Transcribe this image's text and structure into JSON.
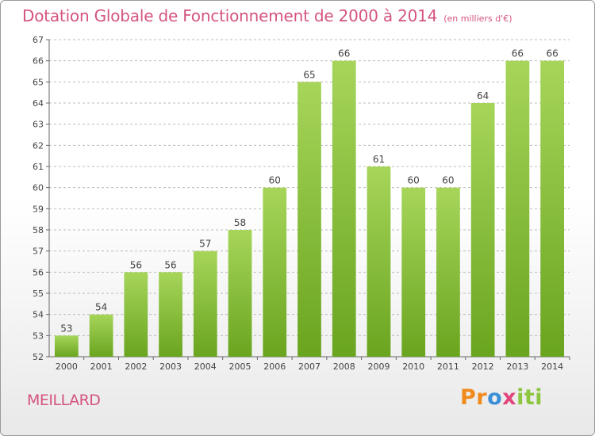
{
  "title": {
    "main": "Dotation Globale de Fonctionnement de 2000 à 2014",
    "unit": "(en milliers d'€)"
  },
  "commune": "MEILLARD",
  "logo": {
    "part1": "Pr",
    "part2": "o",
    "part3": "x",
    "part4": "iti"
  },
  "colors": {
    "title": "#d4547e",
    "bar_light": "#a6d55a",
    "bar_dark": "#6aa51f",
    "grid": "#bbbbbb"
  },
  "chart_data": {
    "type": "bar",
    "categories": [
      "2000",
      "2001",
      "2002",
      "2003",
      "2004",
      "2005",
      "2006",
      "2007",
      "2008",
      "2009",
      "2010",
      "2011",
      "2012",
      "2013",
      "2014"
    ],
    "values": [
      53,
      54,
      56,
      56,
      57,
      58,
      60,
      65,
      66,
      61,
      60,
      60,
      64,
      66,
      66
    ],
    "ylim": [
      52,
      67
    ],
    "yticks": [
      52,
      53,
      54,
      55,
      56,
      57,
      58,
      59,
      60,
      61,
      62,
      63,
      64,
      65,
      66,
      67
    ],
    "grid": "horizontal dashed",
    "xlabel": "",
    "ylabel": ""
  }
}
